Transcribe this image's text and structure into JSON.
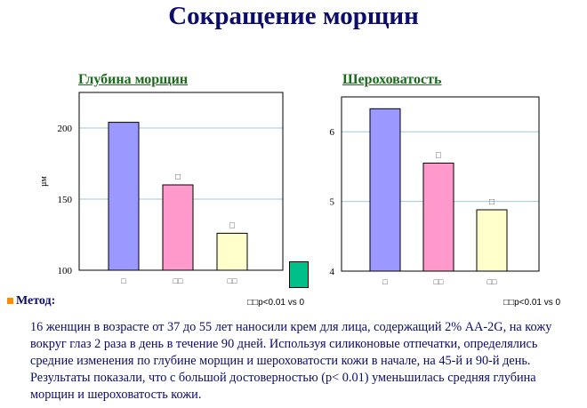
{
  "title": "Сокращение морщин",
  "colors": {
    "title": "#0c0c6b",
    "chart_title": "#1b6a1b",
    "bullet": "#ff8c00",
    "legend_swatch": "#00c08a"
  },
  "legend_swatch_icon": "teal-square",
  "chart_data": [
    {
      "type": "bar",
      "title": "Глубина морщин",
      "ylabel": "μм",
      "ylim": [
        100,
        225
      ],
      "yticks": [
        "100",
        "150",
        "200"
      ],
      "categories": [
        "□",
        "□□",
        "□□"
      ],
      "values": [
        204,
        160,
        126
      ],
      "colors": [
        "#9999ff",
        "#ff99cc",
        "#ffffcc"
      ],
      "markers": [
        "",
        "□",
        "□"
      ],
      "note": "□□p<0.01 vs 0",
      "grid": true
    },
    {
      "type": "bar",
      "title": "Шероховатость",
      "ylabel": "",
      "ylim": [
        4,
        6.5
      ],
      "yticks": [
        "4",
        "5",
        "6"
      ],
      "categories": [
        "□",
        "□□",
        "□□"
      ],
      "values": [
        6.33,
        5.55,
        4.88
      ],
      "colors": [
        "#9999ff",
        "#ff99cc",
        "#ffffcc"
      ],
      "markers": [
        "",
        "□",
        "□"
      ],
      "note": "□□p<0.01 vs 0",
      "grid": true
    }
  ],
  "method": {
    "label": "Метод:",
    "text": "16 женщин в возрасте  от 37 до 55 лет наносили крем для лица, содержащий 2% AA-2G, на кожу   вокруг глаз 2 раза в день в течение 90 дней. Используя силиконовые отпечатки, определялись средние изменения по глубине морщин и шероховатости кожи в  начале, на 45-й и 90-й день. Результаты показали, что с большой достоверностью  (p< 0.01) уменьшилась средняя глубина морщин и шероховатость кожи."
  }
}
